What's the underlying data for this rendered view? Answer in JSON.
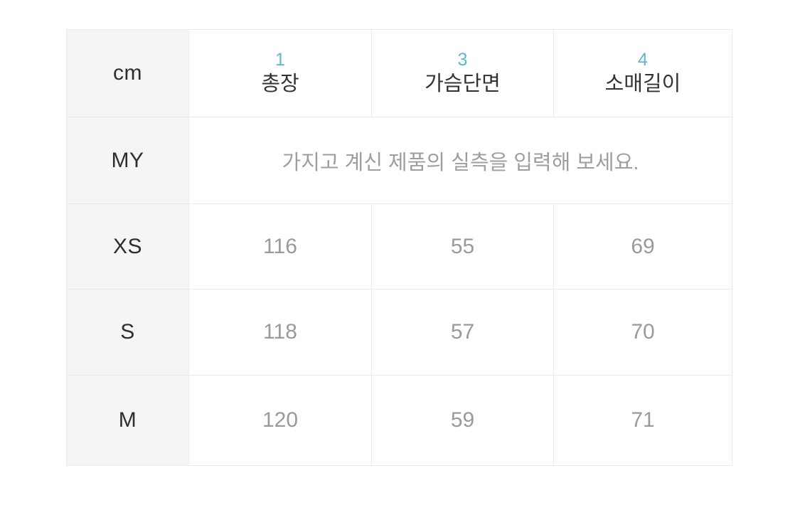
{
  "table": {
    "unit_label": "cm",
    "columns": [
      {
        "num": "1",
        "label": "총장"
      },
      {
        "num": "3",
        "label": "가슴단면"
      },
      {
        "num": "4",
        "label": "소매길이"
      }
    ],
    "my_row": {
      "label": "MY",
      "placeholder": "가지고 계신 제품의 실측을 입력해 보세요."
    },
    "rows": [
      {
        "size": "XS",
        "values": [
          "116",
          "55",
          "69"
        ]
      },
      {
        "size": "S",
        "values": [
          "118",
          "57",
          "70"
        ]
      },
      {
        "size": "M",
        "values": [
          "120",
          "59",
          "71"
        ]
      }
    ],
    "colors": {
      "accent": "#58b8d9",
      "label_text": "#2e2e2e",
      "value_text": "#9a9a9a",
      "label_cell_bg": "#f5f5f6",
      "grid_border": "#eaeaea"
    }
  }
}
